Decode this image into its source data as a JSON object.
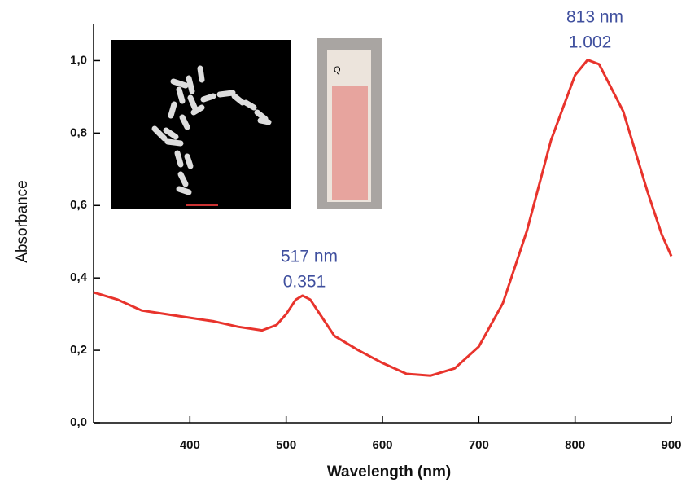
{
  "chart_data": {
    "type": "line",
    "x_label": "Wavelength (nm)",
    "y_label": "Absorbance",
    "x": [
      300,
      325,
      350,
      375,
      400,
      425,
      450,
      475,
      490,
      500,
      510,
      517,
      525,
      535,
      550,
      575,
      600,
      625,
      650,
      675,
      700,
      725,
      750,
      775,
      800,
      813,
      825,
      850,
      875,
      890,
      900
    ],
    "series": [
      {
        "name": "Absorbance",
        "color": "#e8332c",
        "values": [
          0.36,
          0.34,
          0.31,
          0.3,
          0.29,
          0.28,
          0.265,
          0.255,
          0.27,
          0.3,
          0.34,
          0.351,
          0.34,
          0.3,
          0.24,
          0.2,
          0.165,
          0.135,
          0.13,
          0.15,
          0.21,
          0.33,
          0.53,
          0.78,
          0.96,
          1.002,
          0.99,
          0.86,
          0.64,
          0.52,
          0.46
        ]
      }
    ],
    "xlim": [
      300,
      900
    ],
    "xticks": [
      400,
      500,
      600,
      700,
      800,
      900
    ],
    "ylim": [
      0,
      1.1
    ],
    "yticks": [
      {
        "value": 0,
        "label": "0,0"
      },
      {
        "value": 0.2,
        "label": "0,2"
      },
      {
        "value": 0.4,
        "label": "0,4"
      },
      {
        "value": 0.6,
        "label": "0,6"
      },
      {
        "value": 0.8,
        "label": "0,8"
      },
      {
        "value": 1.0,
        "label": "1,0"
      }
    ],
    "annotations": [
      "517 nm",
      "0.351",
      "813 nm",
      "1.002"
    ],
    "inset_label": "Q"
  }
}
